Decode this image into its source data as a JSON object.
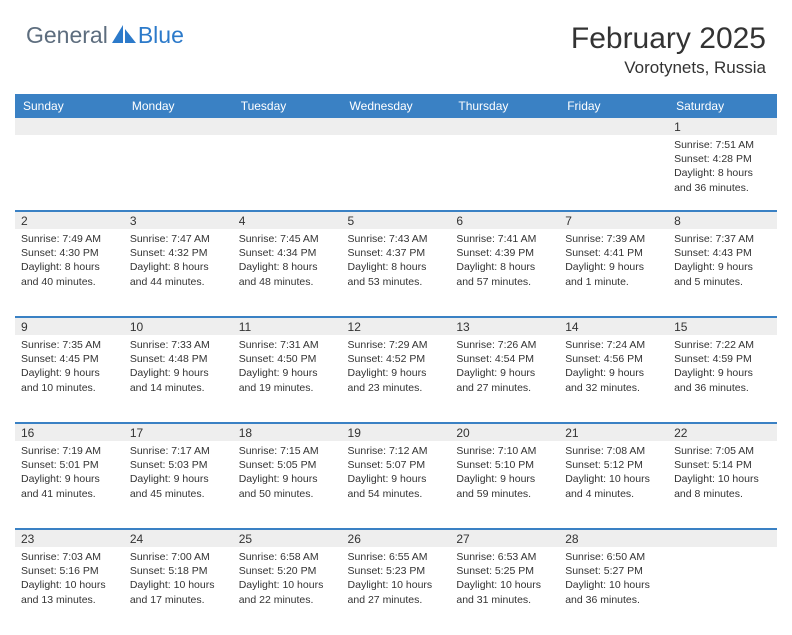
{
  "brand": {
    "part1": "General",
    "part2": "Blue"
  },
  "title": "February 2025",
  "location": "Vorotynets, Russia",
  "colors": {
    "header_bg": "#3a81c4",
    "header_text": "#ffffff",
    "brand_gray": "#5d6d7e",
    "brand_blue": "#2c7aca",
    "shade_bg": "#eeeeee",
    "border": "#3a81c4"
  },
  "day_names": [
    "Sunday",
    "Monday",
    "Tuesday",
    "Wednesday",
    "Thursday",
    "Friday",
    "Saturday"
  ],
  "weeks": [
    [
      null,
      null,
      null,
      null,
      null,
      null,
      {
        "n": "1",
        "sr": "7:51 AM",
        "ss": "4:28 PM",
        "dl": "8 hours and 36 minutes."
      }
    ],
    [
      {
        "n": "2",
        "sr": "7:49 AM",
        "ss": "4:30 PM",
        "dl": "8 hours and 40 minutes."
      },
      {
        "n": "3",
        "sr": "7:47 AM",
        "ss": "4:32 PM",
        "dl": "8 hours and 44 minutes."
      },
      {
        "n": "4",
        "sr": "7:45 AM",
        "ss": "4:34 PM",
        "dl": "8 hours and 48 minutes."
      },
      {
        "n": "5",
        "sr": "7:43 AM",
        "ss": "4:37 PM",
        "dl": "8 hours and 53 minutes."
      },
      {
        "n": "6",
        "sr": "7:41 AM",
        "ss": "4:39 PM",
        "dl": "8 hours and 57 minutes."
      },
      {
        "n": "7",
        "sr": "7:39 AM",
        "ss": "4:41 PM",
        "dl": "9 hours and 1 minute."
      },
      {
        "n": "8",
        "sr": "7:37 AM",
        "ss": "4:43 PM",
        "dl": "9 hours and 5 minutes."
      }
    ],
    [
      {
        "n": "9",
        "sr": "7:35 AM",
        "ss": "4:45 PM",
        "dl": "9 hours and 10 minutes."
      },
      {
        "n": "10",
        "sr": "7:33 AM",
        "ss": "4:48 PM",
        "dl": "9 hours and 14 minutes."
      },
      {
        "n": "11",
        "sr": "7:31 AM",
        "ss": "4:50 PM",
        "dl": "9 hours and 19 minutes."
      },
      {
        "n": "12",
        "sr": "7:29 AM",
        "ss": "4:52 PM",
        "dl": "9 hours and 23 minutes."
      },
      {
        "n": "13",
        "sr": "7:26 AM",
        "ss": "4:54 PM",
        "dl": "9 hours and 27 minutes."
      },
      {
        "n": "14",
        "sr": "7:24 AM",
        "ss": "4:56 PM",
        "dl": "9 hours and 32 minutes."
      },
      {
        "n": "15",
        "sr": "7:22 AM",
        "ss": "4:59 PM",
        "dl": "9 hours and 36 minutes."
      }
    ],
    [
      {
        "n": "16",
        "sr": "7:19 AM",
        "ss": "5:01 PM",
        "dl": "9 hours and 41 minutes."
      },
      {
        "n": "17",
        "sr": "7:17 AM",
        "ss": "5:03 PM",
        "dl": "9 hours and 45 minutes."
      },
      {
        "n": "18",
        "sr": "7:15 AM",
        "ss": "5:05 PM",
        "dl": "9 hours and 50 minutes."
      },
      {
        "n": "19",
        "sr": "7:12 AM",
        "ss": "5:07 PM",
        "dl": "9 hours and 54 minutes."
      },
      {
        "n": "20",
        "sr": "7:10 AM",
        "ss": "5:10 PM",
        "dl": "9 hours and 59 minutes."
      },
      {
        "n": "21",
        "sr": "7:08 AM",
        "ss": "5:12 PM",
        "dl": "10 hours and 4 minutes."
      },
      {
        "n": "22",
        "sr": "7:05 AM",
        "ss": "5:14 PM",
        "dl": "10 hours and 8 minutes."
      }
    ],
    [
      {
        "n": "23",
        "sr": "7:03 AM",
        "ss": "5:16 PM",
        "dl": "10 hours and 13 minutes."
      },
      {
        "n": "24",
        "sr": "7:00 AM",
        "ss": "5:18 PM",
        "dl": "10 hours and 17 minutes."
      },
      {
        "n": "25",
        "sr": "6:58 AM",
        "ss": "5:20 PM",
        "dl": "10 hours and 22 minutes."
      },
      {
        "n": "26",
        "sr": "6:55 AM",
        "ss": "5:23 PM",
        "dl": "10 hours and 27 minutes."
      },
      {
        "n": "27",
        "sr": "6:53 AM",
        "ss": "5:25 PM",
        "dl": "10 hours and 31 minutes."
      },
      {
        "n": "28",
        "sr": "6:50 AM",
        "ss": "5:27 PM",
        "dl": "10 hours and 36 minutes."
      },
      null
    ]
  ],
  "labels": {
    "sunrise": "Sunrise:",
    "sunset": "Sunset:",
    "daylight": "Daylight:"
  }
}
